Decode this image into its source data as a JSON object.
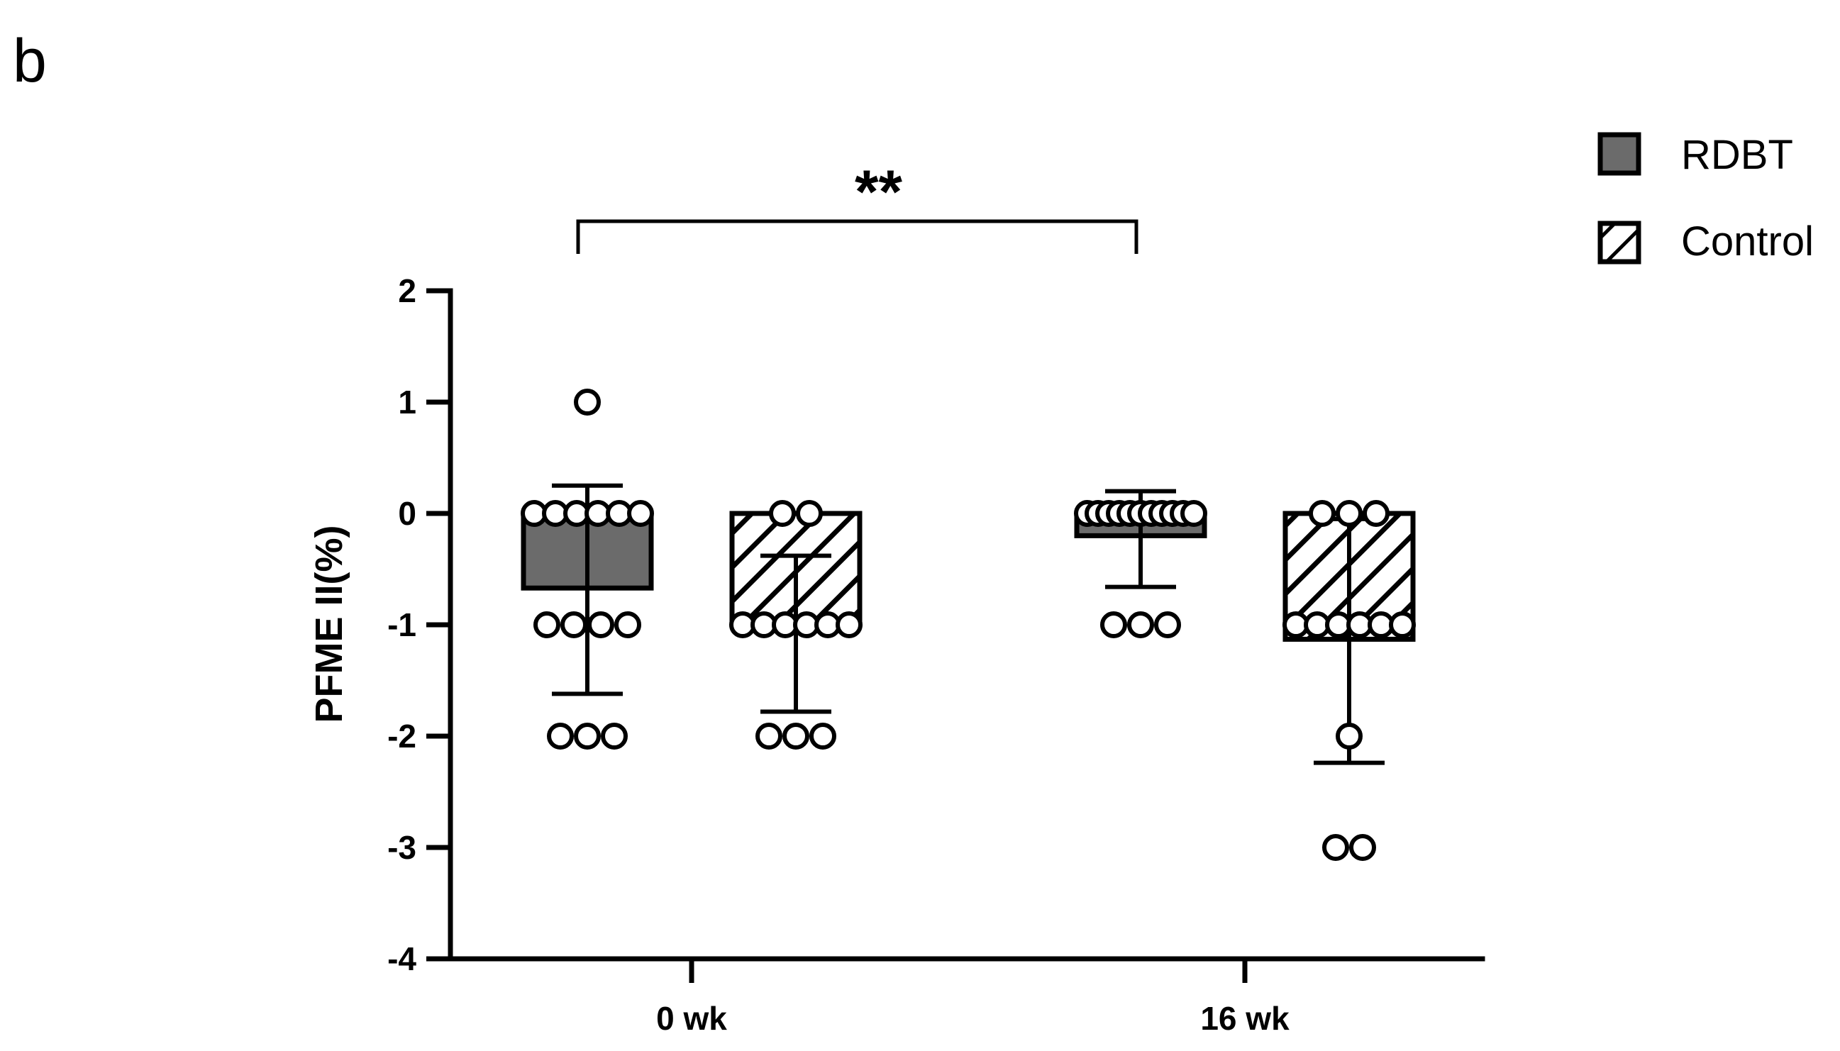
{
  "panel_label": "b",
  "colors": {
    "rdbt_fill": "#6b6b6b",
    "control_fill": "#ffffff",
    "hatch": "#000000"
  },
  "chart_data": {
    "type": "bar",
    "title": "",
    "xlabel": "",
    "ylabel": "PFME II(%)",
    "ylim": [
      -4,
      2
    ],
    "yticks": [
      2,
      1,
      0,
      -1,
      -2,
      -3,
      -4
    ],
    "ytick_labels": [
      "2",
      "1",
      "0",
      "-1",
      "-2",
      "-3",
      "-4"
    ],
    "categories": [
      "0 wk",
      "16 wk"
    ],
    "legend": {
      "position": "top-right",
      "entries": [
        "RDBT",
        "Control"
      ]
    },
    "series": [
      {
        "name": "RDBT",
        "pattern": "solid",
        "values": [
          -0.67,
          -0.2
        ],
        "error_low": [
          -1.62,
          -0.66
        ],
        "error_high": [
          0.25,
          0.2
        ],
        "points": [
          [
            1,
            0,
            0,
            0,
            0,
            0,
            0,
            -1,
            -1,
            -1,
            -1,
            -2,
            -2,
            -2
          ],
          [
            0,
            0,
            0,
            0,
            0,
            0,
            0,
            0,
            0,
            0,
            0,
            -1,
            -1,
            -1
          ]
        ]
      },
      {
        "name": "Control",
        "pattern": "hatched",
        "values": [
          -1.0,
          -1.13
        ],
        "error_low": [
          -1.78,
          -2.24
        ],
        "error_high": [
          -0.38,
          -0.05
        ],
        "points": [
          [
            0,
            0,
            -1,
            -1,
            -1,
            -1,
            -1,
            -1,
            -2,
            -2,
            -2
          ],
          [
            0,
            0,
            0,
            -1,
            -1,
            -1,
            -1,
            -1,
            -1,
            -2,
            -3,
            -3
          ]
        ]
      }
    ],
    "annotations": [
      {
        "text": "**",
        "type": "significance-bracket",
        "from": [
          "RDBT",
          "0 wk"
        ],
        "to": [
          "RDBT",
          "16 wk"
        ]
      }
    ]
  }
}
